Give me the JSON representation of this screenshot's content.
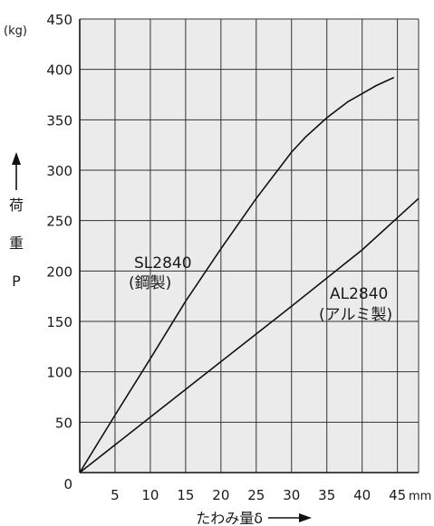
{
  "chart_data": {
    "type": "line",
    "x_unit": "mm",
    "y_unit": "(kg)",
    "xlabel": "たわみ量δ",
    "ylabel": [
      "荷",
      "重",
      "P"
    ],
    "xlim": [
      0,
      48
    ],
    "ylim": [
      0,
      450
    ],
    "x_ticks": [
      5,
      10,
      15,
      20,
      25,
      30,
      35,
      40,
      45
    ],
    "y_ticks": [
      0,
      50,
      100,
      150,
      200,
      250,
      300,
      350,
      400,
      450
    ],
    "grid": true,
    "series": [
      {
        "name": "SL2840",
        "material": "(鋼製)",
        "x": [
          0,
          5,
          10,
          15,
          20,
          25,
          30,
          32,
          35,
          38,
          40,
          42,
          44.5
        ],
        "y": [
          0,
          57,
          113,
          170,
          222,
          272,
          318,
          333,
          352,
          368,
          376,
          384,
          392
        ]
      },
      {
        "name": "AL2840",
        "material": "(アルミ製)",
        "x": [
          0,
          10,
          20,
          30,
          40,
          48
        ],
        "y": [
          0,
          55,
          110,
          165,
          221,
          272
        ]
      }
    ],
    "colors": {
      "background": "#ebebeb",
      "grid": "#333333",
      "line": "#111111"
    }
  }
}
